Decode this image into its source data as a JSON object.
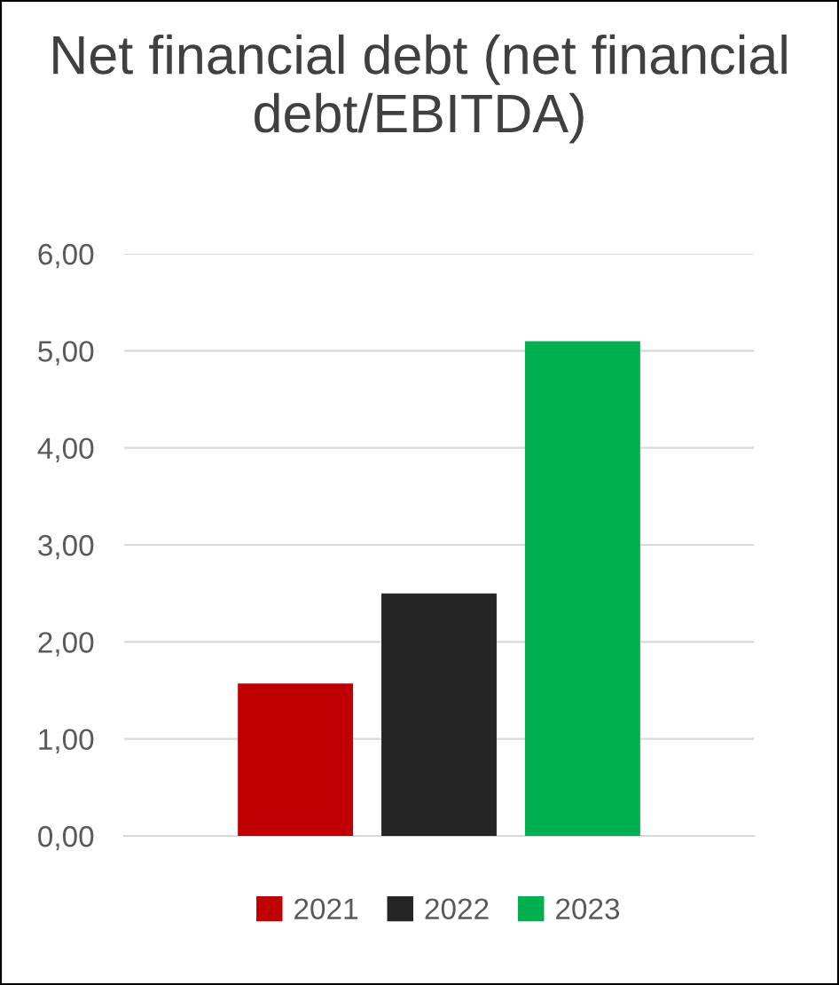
{
  "chart_data": {
    "type": "bar",
    "title": "Net financial debt (net financial debt/EBITDA)",
    "categories": [
      null
    ],
    "series": [
      {
        "name": "2021",
        "color": "#c00000",
        "values": [
          1.57
        ]
      },
      {
        "name": "2022",
        "color": "#262626",
        "values": [
          2.5
        ]
      },
      {
        "name": "2023",
        "color": "#00b050",
        "values": [
          5.1
        ]
      }
    ],
    "ylim": [
      0,
      6
    ],
    "yticks": [
      {
        "value": 0,
        "label": "0,00"
      },
      {
        "value": 1,
        "label": "1,00"
      },
      {
        "value": 2,
        "label": "2,00"
      },
      {
        "value": 3,
        "label": "3,00"
      },
      {
        "value": 4,
        "label": "4,00"
      },
      {
        "value": 5,
        "label": "5,00"
      },
      {
        "value": 6,
        "label": "6,00"
      }
    ],
    "grid": "y",
    "legend": "bottom"
  }
}
